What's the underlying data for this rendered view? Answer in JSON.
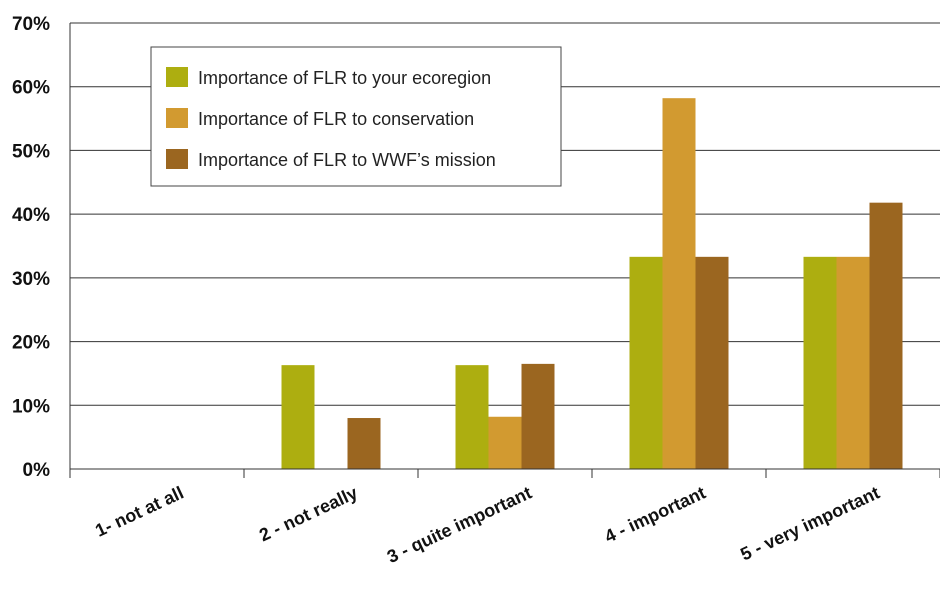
{
  "chart_data": {
    "type": "bar",
    "categories": [
      "1- not at all",
      "2 - not really",
      "3 - quite important",
      "4 - important",
      "5 - very important"
    ],
    "series": [
      {
        "name": "Importance of FLR to your ecoregion",
        "color": "#adae10",
        "values": [
          0,
          16.3,
          16.3,
          33.3,
          33.3
        ]
      },
      {
        "name": "Importance of FLR to conservation",
        "color": "#d29a30",
        "values": [
          0,
          0,
          8.2,
          58.2,
          33.3
        ]
      },
      {
        "name": "Importance of FLR to WWF’s mission",
        "color": "#9b6620",
        "values": [
          0,
          8.0,
          16.5,
          33.3,
          41.8
        ]
      }
    ],
    "y_ticks": [
      "0%",
      "10%",
      "20%",
      "30%",
      "40%",
      "50%",
      "60%",
      "70%"
    ],
    "ylim": [
      0,
      70
    ],
    "grid": "horizontal",
    "legend_position": "top-left"
  }
}
